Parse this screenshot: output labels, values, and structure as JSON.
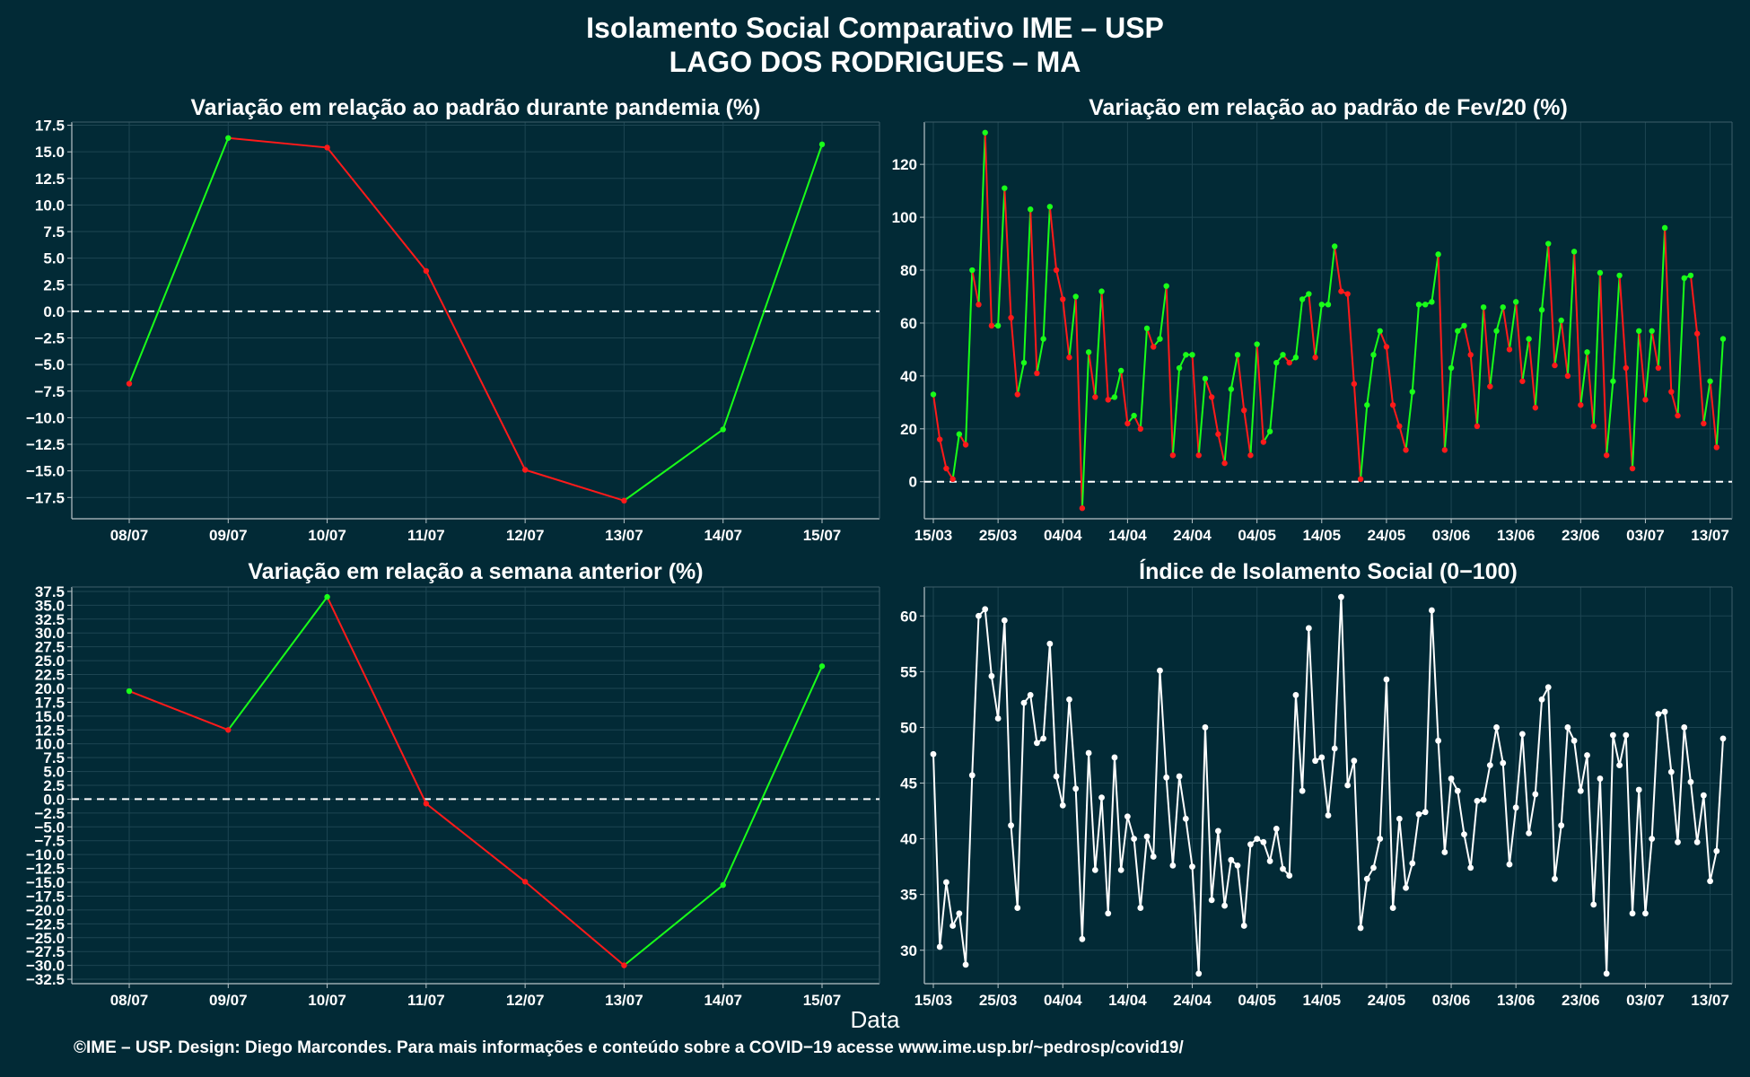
{
  "title_line1": "Isolamento Social Comparativo IME – USP",
  "title_line2": "LAGO DOS RODRIGUES – MA",
  "xlabel": "Data",
  "footer": "©IME – USP. Design: Diego Marcondes. Para mais informações e conteúdo sobre a COVID−19 acesse www.ime.usp.br/~pedrosp/covid19/",
  "colors": {
    "background": "#022a36",
    "up": "#19ff19",
    "down": "#ff1a1a",
    "index": "#ffffff",
    "reference": "#ffffff"
  },
  "chart_data": [
    {
      "id": "pandemia",
      "type": "line",
      "title": "Variação em relação ao padrão durante pandemia (%)",
      "categories": [
        "08/07",
        "09/07",
        "10/07",
        "11/07",
        "12/07",
        "13/07",
        "14/07",
        "15/07"
      ],
      "values": [
        -6.8,
        16.3,
        15.4,
        3.8,
        -14.9,
        -17.8,
        -11.1,
        15.7
      ],
      "ylim": [
        -19.5,
        17.8
      ],
      "yticks": [
        17.5,
        15,
        12.5,
        10,
        7.5,
        5,
        2.5,
        0,
        -2.5,
        -5,
        -7.5,
        -10,
        -12.5,
        -15,
        -17.5
      ],
      "ytick_labels": [
        "17.5",
        "15.0",
        "12.5",
        "10.0",
        "7.5",
        "5.0",
        "2.5",
        "0.0",
        "−2.5",
        "−5.0",
        "−7.5",
        "−10.0",
        "−12.5",
        "−15.0",
        "−17.5"
      ],
      "reference_line": 0,
      "grid": true
    },
    {
      "id": "fev20",
      "type": "line",
      "title": "Variação em relação ao padrão de Fev/20 (%)",
      "x_start": "15/03",
      "x_ticks": [
        "15/03",
        "25/03",
        "04/04",
        "14/04",
        "24/04",
        "04/05",
        "14/05",
        "24/05",
        "03/06",
        "13/06",
        "23/06",
        "03/07",
        "13/07"
      ],
      "values": [
        33,
        16,
        5,
        1,
        18,
        14,
        80,
        67,
        132,
        59,
        59,
        111,
        62,
        33,
        45,
        103,
        41,
        54,
        104,
        80,
        69,
        47,
        70,
        -10,
        49,
        32,
        72,
        31,
        32,
        42,
        22,
        25,
        20,
        58,
        51,
        54,
        74,
        10,
        43,
        48,
        48,
        10,
        39,
        32,
        18,
        7,
        35,
        48,
        27,
        10,
        52,
        15,
        19,
        45,
        48,
        45,
        47,
        69,
        71,
        47,
        67,
        67,
        89,
        72,
        71,
        37,
        1,
        29,
        48,
        57,
        51,
        29,
        21,
        12,
        34,
        67,
        67,
        68,
        86,
        12,
        43,
        57,
        59,
        48,
        21,
        66,
        36,
        57,
        66,
        50,
        68,
        38,
        54,
        28,
        65,
        90,
        44,
        61,
        40,
        87,
        29,
        49,
        21,
        79,
        10,
        38,
        78,
        43,
        5,
        57,
        31,
        57,
        43,
        96,
        34,
        25,
        77,
        78,
        56,
        22,
        38,
        13,
        54
      ],
      "ylim": [
        -14,
        136
      ],
      "yticks": [
        0,
        20,
        40,
        60,
        80,
        100,
        120
      ],
      "ytick_labels": [
        "0",
        "20",
        "40",
        "60",
        "80",
        "100",
        "120"
      ],
      "reference_line": 0,
      "grid": true
    },
    {
      "id": "semana",
      "type": "line",
      "title": "Variação em relação a semana anterior (%)",
      "categories": [
        "08/07",
        "09/07",
        "10/07",
        "11/07",
        "12/07",
        "13/07",
        "14/07",
        "15/07"
      ],
      "values": [
        19.5,
        12.5,
        36.5,
        -0.8,
        -14.9,
        -30.0,
        -15.5,
        24.0
      ],
      "ylim": [
        -33.3,
        38.3
      ],
      "yticks": [
        37.5,
        35,
        32.5,
        30,
        27.5,
        25,
        22.5,
        20,
        17.5,
        15,
        12.5,
        10,
        7.5,
        5,
        2.5,
        0,
        -2.5,
        -5,
        -7.5,
        -10,
        -12.5,
        -15,
        -17.5,
        -20,
        -22.5,
        -25,
        -27.5,
        -30,
        -32.5
      ],
      "ytick_labels": [
        "37.5",
        "35.0",
        "32.5",
        "30.0",
        "27.5",
        "25.0",
        "22.5",
        "20.0",
        "17.5",
        "15.0",
        "12.5",
        "10.0",
        "7.5",
        "5.0",
        "2.5",
        "0.0",
        "−2.5",
        "−5.0",
        "−7.5",
        "−10.0",
        "−12.5",
        "−15.0",
        "−17.5",
        "−20.0",
        "−22.5",
        "−25.0",
        "−27.5",
        "−30.0",
        "−32.5"
      ],
      "reference_line": 0,
      "grid": true
    },
    {
      "id": "indice",
      "type": "line",
      "title": "Índice de Isolamento Social (0−100)",
      "x_start": "15/03",
      "x_ticks": [
        "15/03",
        "25/03",
        "04/04",
        "14/04",
        "24/04",
        "04/05",
        "14/05",
        "24/05",
        "03/06",
        "13/06",
        "23/06",
        "03/07",
        "13/07"
      ],
      "values": [
        47.6,
        30.3,
        36.1,
        32.2,
        33.3,
        28.7,
        45.7,
        60.0,
        60.6,
        54.6,
        50.8,
        59.6,
        41.2,
        33.8,
        52.2,
        52.9,
        48.6,
        49.0,
        57.5,
        45.6,
        43.0,
        52.5,
        44.5,
        31.0,
        47.7,
        37.2,
        43.7,
        33.3,
        47.3,
        37.2,
        42.0,
        40.0,
        33.8,
        40.2,
        38.4,
        55.1,
        45.5,
        37.6,
        45.6,
        41.8,
        37.5,
        27.9,
        50.0,
        34.5,
        40.7,
        34.0,
        38.1,
        37.6,
        32.2,
        39.5,
        40.0,
        39.7,
        38.0,
        40.9,
        37.3,
        36.7,
        52.9,
        44.3,
        58.9,
        47.0,
        47.3,
        42.1,
        48.1,
        61.7,
        44.8,
        47.0,
        32.0,
        36.4,
        37.4,
        40.0,
        54.3,
        33.8,
        41.8,
        35.6,
        37.8,
        42.2,
        42.4,
        60.5,
        48.8,
        38.8,
        45.4,
        44.3,
        40.4,
        37.4,
        43.4,
        43.5,
        46.6,
        50.0,
        46.8,
        37.7,
        42.8,
        49.4,
        40.5,
        44.0,
        52.5,
        53.6,
        36.4,
        41.2,
        50.0,
        48.8,
        44.3,
        47.5,
        34.1,
        45.4,
        27.9,
        49.3,
        46.6,
        49.3,
        33.3,
        44.4,
        33.3,
        40.0,
        51.2,
        51.4,
        46.0,
        39.7,
        50.0,
        45.1,
        39.7,
        43.9,
        36.2,
        38.9,
        49.0
      ],
      "ylim": [
        27,
        62.6
      ],
      "yticks": [
        30,
        35,
        40,
        45,
        50,
        55,
        60
      ],
      "ytick_labels": [
        "30",
        "35",
        "40",
        "45",
        "50",
        "55",
        "60"
      ],
      "grid": true
    }
  ]
}
